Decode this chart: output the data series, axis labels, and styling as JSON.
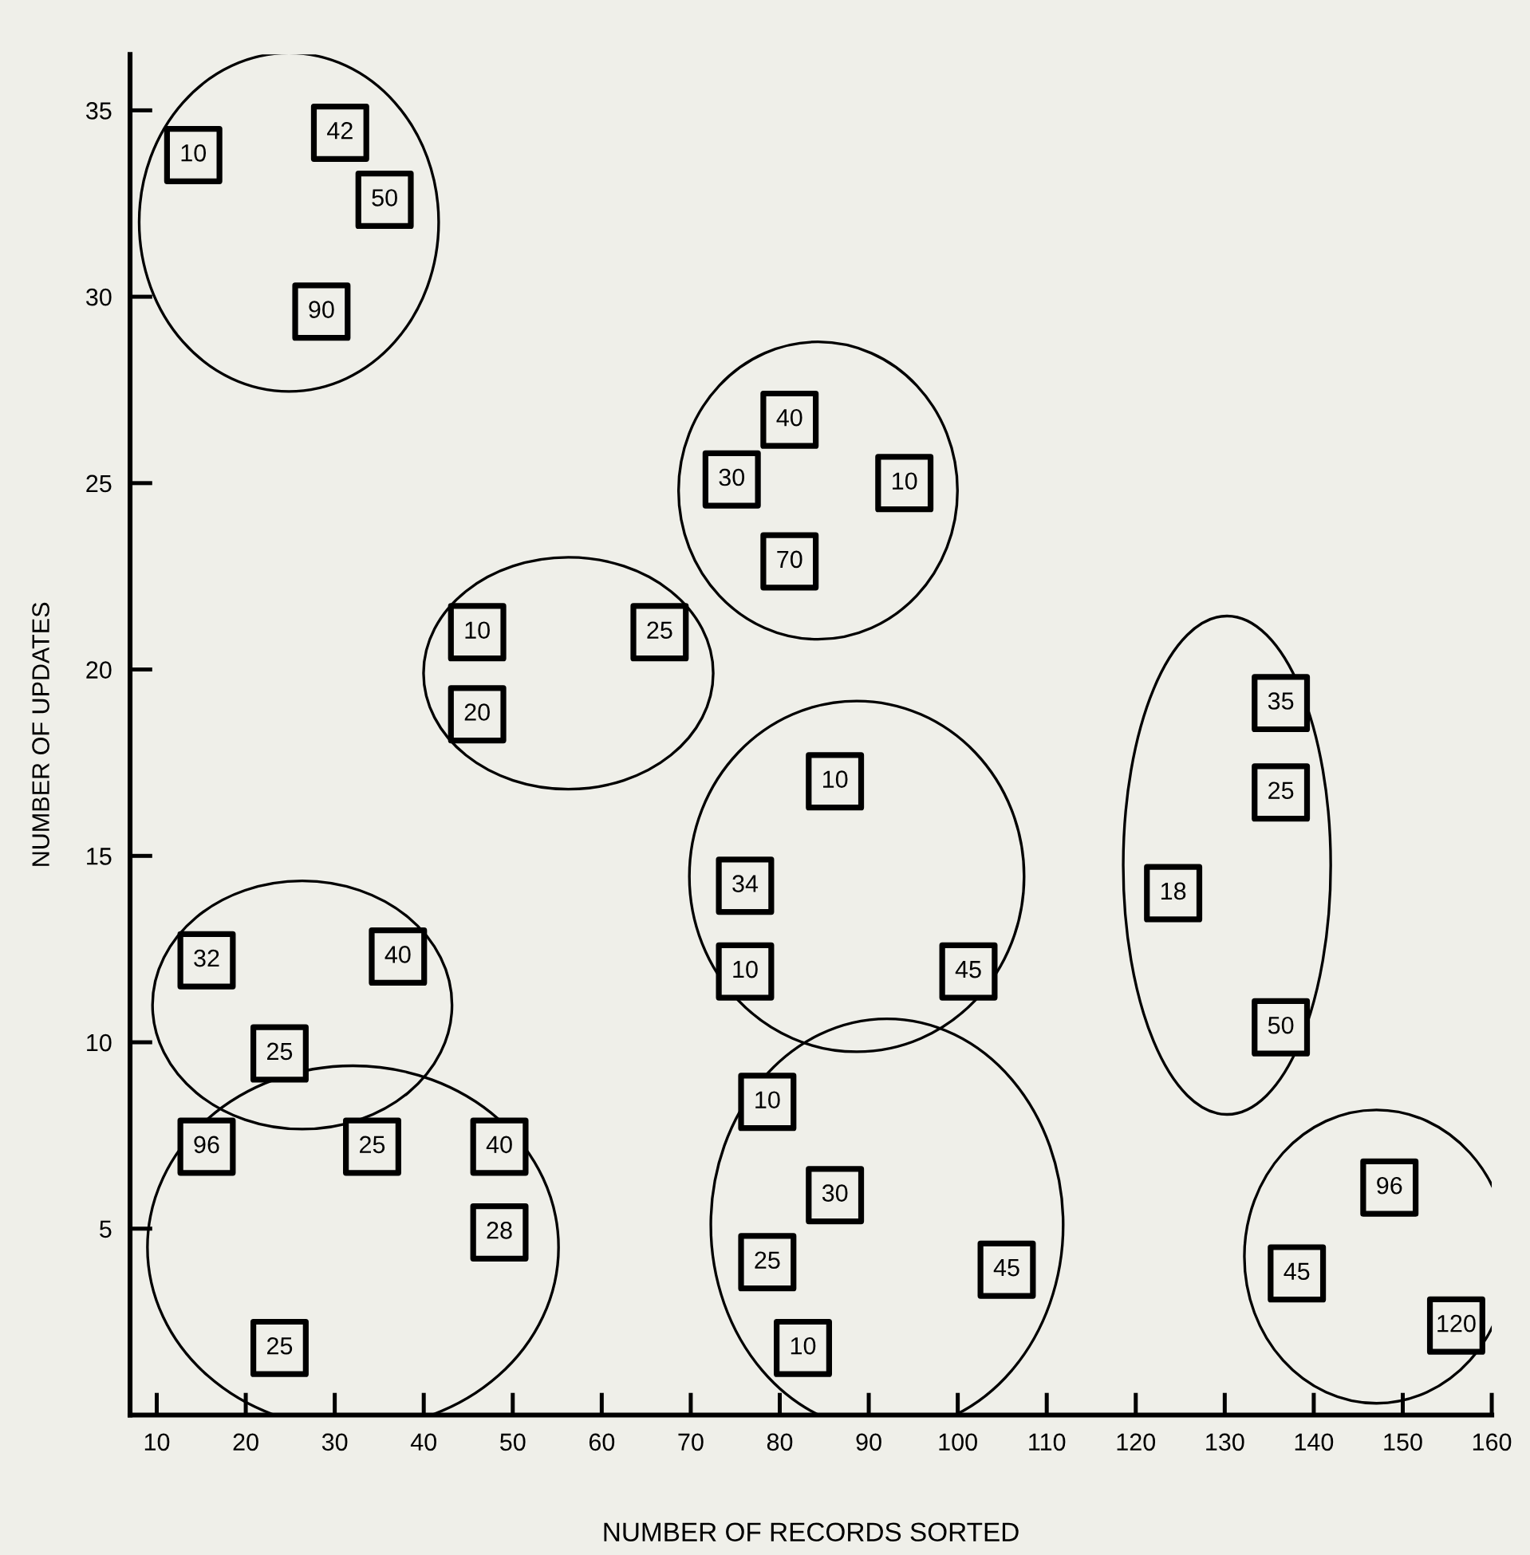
{
  "chart_data": {
    "type": "scatter",
    "xlabel": "NUMBER OF RECORDS SORTED",
    "ylabel": "NUMBER OF UPDATES",
    "marker": "square",
    "grid": false,
    "legend": false,
    "xlim": [
      7,
      160
    ],
    "ylim": [
      0,
      36.5
    ],
    "xticks": [
      10,
      20,
      30,
      40,
      50,
      60,
      70,
      80,
      90,
      100,
      110,
      120,
      130,
      140,
      150,
      160
    ],
    "yticks": [
      5,
      10,
      15,
      20,
      25,
      30,
      35
    ],
    "series": [
      {
        "color": "#000000",
        "x": [
          14.1,
          30.6,
          35.6,
          28.5
        ],
        "values": [
          33.8,
          34.4,
          32.6,
          29.6
        ]
      },
      {
        "color": "#000000",
        "x": [
          81.1,
          74.6,
          94,
          81.1
        ],
        "values": [
          26.7,
          25.1,
          25.0,
          22.9
        ]
      },
      {
        "color": "#000000",
        "x": [
          46,
          66.5,
          46
        ],
        "values": [
          21.0,
          21.0,
          18.8
        ]
      },
      {
        "color": "#000000",
        "x": [
          136.3,
          136.3,
          124.2,
          136.3
        ],
        "values": [
          19.1,
          16.7,
          14.0,
          10.4
        ]
      },
      {
        "color": "#000000",
        "x": [
          86.2,
          76.1,
          76.1,
          101.2
        ],
        "values": [
          17.0,
          14.2,
          11.9,
          11.9
        ]
      },
      {
        "color": "#000000",
        "x": [
          15.6,
          37.1,
          23.8
        ],
        "values": [
          12.2,
          12.3,
          9.7
        ]
      },
      {
        "color": "#000000",
        "x": [
          15.6,
          34.2,
          48.5,
          48.5,
          23.8
        ],
        "values": [
          7.2,
          7.2,
          7.2,
          4.9,
          1.8
        ]
      },
      {
        "color": "#000000",
        "x": [
          78.6,
          86.2,
          78.6,
          105.5,
          82.6
        ],
        "values": [
          8.4,
          5.9,
          4.1,
          3.9,
          1.8
        ]
      },
      {
        "color": "#000000",
        "x": [
          138.1,
          148.5,
          156
        ],
        "values": [
          3.8,
          6.1,
          2.4
        ]
      }
    ],
    "annotations": [
      {
        "text": "10",
        "x": 14.1,
        "y": 33.8
      },
      {
        "text": "42",
        "x": 30.6,
        "y": 34.4
      },
      {
        "text": "50",
        "x": 35.6,
        "y": 32.6
      },
      {
        "text": "90",
        "x": 28.5,
        "y": 29.6
      },
      {
        "text": "40",
        "x": 81.1,
        "y": 26.7
      },
      {
        "text": "30",
        "x": 74.6,
        "y": 25.1
      },
      {
        "text": "10",
        "x": 94,
        "y": 25.0
      },
      {
        "text": "70",
        "x": 81.1,
        "y": 22.9
      },
      {
        "text": "10",
        "x": 46,
        "y": 21.0
      },
      {
        "text": "25",
        "x": 66.5,
        "y": 21.0
      },
      {
        "text": "20",
        "x": 46,
        "y": 18.8
      },
      {
        "text": "35",
        "x": 136.3,
        "y": 19.1
      },
      {
        "text": "25",
        "x": 136.3,
        "y": 16.7
      },
      {
        "text": "18",
        "x": 124.2,
        "y": 14.0
      },
      {
        "text": "50",
        "x": 136.3,
        "y": 10.4
      },
      {
        "text": "10",
        "x": 86.2,
        "y": 17.0
      },
      {
        "text": "34",
        "x": 76.1,
        "y": 14.2
      },
      {
        "text": "10",
        "x": 76.1,
        "y": 11.9
      },
      {
        "text": "45",
        "x": 101.2,
        "y": 11.9
      },
      {
        "text": "32",
        "x": 15.6,
        "y": 12.2
      },
      {
        "text": "40",
        "x": 37.1,
        "y": 12.3
      },
      {
        "text": "25",
        "x": 23.8,
        "y": 9.7
      },
      {
        "text": "96",
        "x": 15.6,
        "y": 7.2
      },
      {
        "text": "25",
        "x": 34.2,
        "y": 7.2
      },
      {
        "text": "40",
        "x": 48.5,
        "y": 7.2
      },
      {
        "text": "28",
        "x": 48.5,
        "y": 4.9
      },
      {
        "text": "25",
        "x": 23.8,
        "y": 1.8
      },
      {
        "text": "10",
        "x": 78.6,
        "y": 8.4
      },
      {
        "text": "30",
        "x": 86.2,
        "y": 5.9
      },
      {
        "text": "25",
        "x": 78.6,
        "y": 4.1
      },
      {
        "text": "45",
        "x": 105.5,
        "y": 3.9
      },
      {
        "text": "10",
        "x": 82.6,
        "y": 1.8
      },
      {
        "text": "45",
        "x": 138.1,
        "y": 3.8
      },
      {
        "text": "96",
        "x": 148.5,
        "y": 6.1
      },
      {
        "text": "120",
        "x": 156,
        "y": 2.4
      }
    ]
  }
}
